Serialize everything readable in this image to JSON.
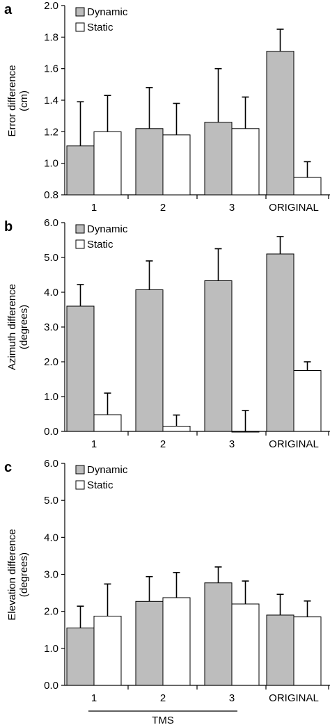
{
  "colors": {
    "dynamic": "#bdbdbd",
    "static": "#ffffff",
    "stroke": "#000000"
  },
  "chart_data": [
    {
      "type": "bar",
      "panel": "a",
      "categories": [
        "1",
        "2",
        "3",
        "ORIGINAL"
      ],
      "series": [
        {
          "name": "Dynamic",
          "values": [
            1.11,
            1.22,
            1.26,
            1.71
          ],
          "errors": [
            0.28,
            0.26,
            0.34,
            0.14
          ]
        },
        {
          "name": "Static",
          "values": [
            1.2,
            1.18,
            1.22,
            0.91
          ],
          "errors": [
            0.23,
            0.2,
            0.2,
            0.1
          ]
        }
      ],
      "ylabel_lines": [
        "Error difference",
        "(cm)"
      ],
      "ylim": [
        0.8,
        2.0
      ],
      "yticks": [
        "0.8",
        "1.0",
        "1.2",
        "1.4",
        "1.6",
        "1.8",
        "2.0"
      ],
      "legend": "top-left",
      "grid": false
    },
    {
      "type": "bar",
      "panel": "b",
      "categories": [
        "1",
        "2",
        "3",
        "ORIGINAL"
      ],
      "series": [
        {
          "name": "Dynamic",
          "values": [
            3.6,
            4.07,
            4.33,
            5.1
          ],
          "errors": [
            0.62,
            0.83,
            0.92,
            0.5
          ]
        },
        {
          "name": "Static",
          "values": [
            0.48,
            0.15,
            -0.02,
            1.75
          ],
          "errors": [
            0.62,
            0.32,
            0.62,
            0.25
          ]
        }
      ],
      "ylabel_lines": [
        "Azimuth difference",
        "(degrees)"
      ],
      "ylim": [
        0.0,
        6.0
      ],
      "yticks": [
        "0.0",
        "1.0",
        "2.0",
        "3.0",
        "4.0",
        "5.0",
        "6.0"
      ],
      "legend": "top-left",
      "grid": false
    },
    {
      "type": "bar",
      "panel": "c",
      "categories": [
        "1",
        "2",
        "3",
        "ORIGINAL"
      ],
      "series": [
        {
          "name": "Dynamic",
          "values": [
            1.55,
            2.27,
            2.77,
            1.9
          ],
          "errors": [
            0.59,
            0.67,
            0.43,
            0.56
          ]
        },
        {
          "name": "Static",
          "values": [
            1.87,
            2.37,
            2.2,
            1.85
          ],
          "errors": [
            0.87,
            0.68,
            0.62,
            0.43
          ]
        }
      ],
      "ylabel_lines": [
        "Elevation difference",
        "(degrees)"
      ],
      "ylim": [
        0.0,
        6.0
      ],
      "yticks": [
        "0.0",
        "1.0",
        "2.0",
        "3.0",
        "4.0",
        "5.0",
        "6.0"
      ],
      "legend": "top-left",
      "grid": false,
      "group_label": "TMS"
    }
  ]
}
